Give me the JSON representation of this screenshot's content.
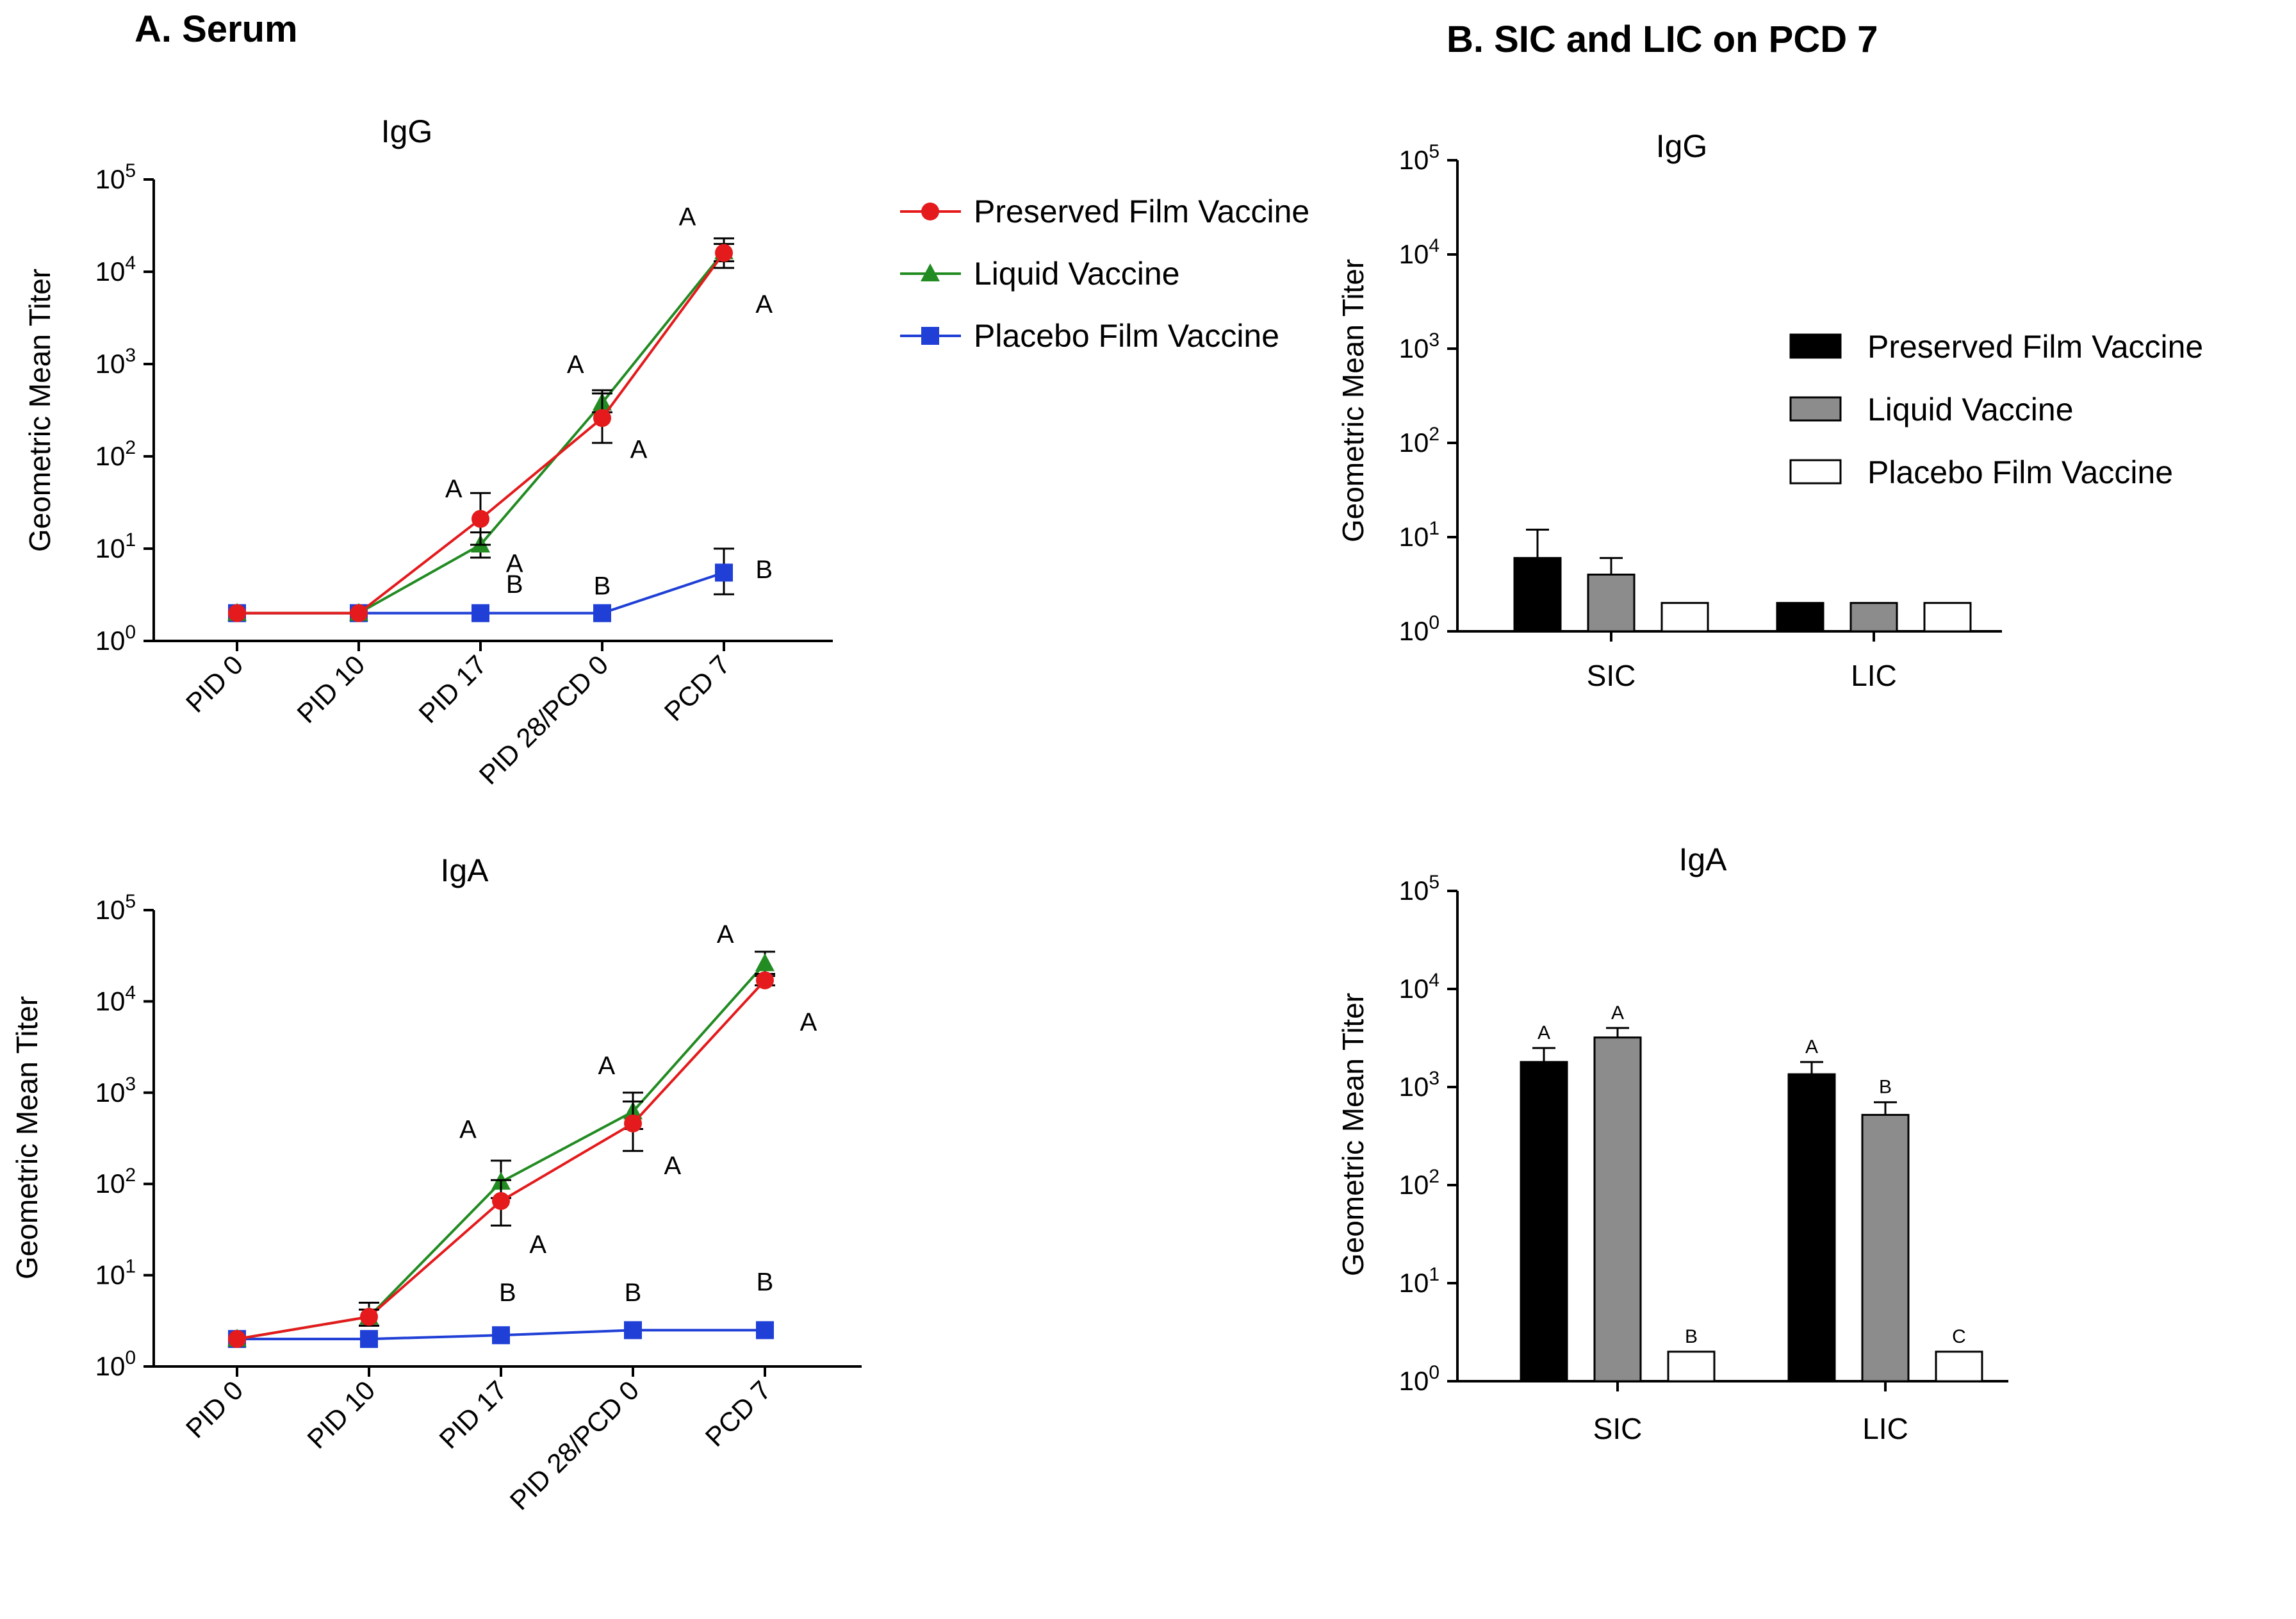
{
  "panel_a_title": "A. Serum",
  "panel_b_title": "B. SIC and LIC on PCD 7",
  "series_colors": {
    "Preserved Film Vaccine": "#e41a1c",
    "Liquid Vaccine": "#228b22",
    "Placebo Film Vaccine": "#1f3fd6"
  },
  "bar_colors": {
    "Preserved Film Vaccine": "#000000",
    "Liquid Vaccine": "#8c8c8c",
    "Placebo Film Vaccine": "#ffffff"
  },
  "line_legend": [
    "Preserved Film Vaccine",
    "Liquid Vaccine",
    "Placebo Film Vaccine"
  ],
  "bar_legend": [
    "Preserved Film Vaccine",
    "Liquid Vaccine",
    "Placebo Film Vaccine"
  ],
  "tick_labels": [
    "10",
    "10",
    "10",
    "10",
    "10",
    "10"
  ],
  "tick_exponents": [
    "0",
    "1",
    "2",
    "3",
    "4",
    "5"
  ],
  "chart_data": [
    {
      "id": "serum_igg",
      "type": "line",
      "title": "IgG",
      "ylabel": "Geometric Mean Titer",
      "yscale": "log",
      "ylim": [
        1,
        100000
      ],
      "categories": [
        "PID 0",
        "PID 10",
        "PID 17",
        "PID 28/PCD 0",
        "PCD 7"
      ],
      "series": [
        {
          "name": "Preserved Film Vaccine",
          "values": [
            2,
            2,
            21,
            260,
            16000
          ],
          "err_low": [
            2,
            2,
            11,
            140,
            11000
          ],
          "err_high": [
            2,
            2,
            40,
            480,
            23000
          ]
        },
        {
          "name": "Liquid Vaccine",
          "values": [
            2,
            2,
            11,
            380,
            16500
          ],
          "err_low": [
            2,
            2,
            8,
            300,
            13000
          ],
          "err_high": [
            2,
            2,
            15,
            520,
            20000
          ]
        },
        {
          "name": "Placebo Film Vaccine",
          "values": [
            2,
            2,
            2,
            2,
            5.5
          ],
          "err_low": [
            2,
            2,
            2,
            2,
            3.2
          ],
          "err_high": [
            2,
            2,
            2,
            2,
            10
          ]
        }
      ],
      "annotations": [
        {
          "text": "A",
          "x": 2,
          "y": 45,
          "dx": -0.22
        },
        {
          "text": "A",
          "x": 2,
          "y": 7,
          "dx": 0.28
        },
        {
          "text": "B",
          "x": 2,
          "y": 2.3,
          "dx": 0.28,
          "dy": 1.8
        },
        {
          "text": "A",
          "x": 3,
          "y": 1000,
          "dx": -0.22
        },
        {
          "text": "A",
          "x": 3,
          "y": 120,
          "dx": 0.3
        },
        {
          "text": "B",
          "x": 3,
          "y": 4,
          "dx": 0
        },
        {
          "text": "A",
          "x": 4,
          "y": 40000,
          "dx": -0.3
        },
        {
          "text": "A",
          "x": 4,
          "y": 4500,
          "dx": 0.33
        },
        {
          "text": "B",
          "x": 4,
          "y": 6,
          "dx": 0.33
        }
      ]
    },
    {
      "id": "serum_iga",
      "type": "line",
      "title": "IgA",
      "ylabel": "Geometric Mean Titer",
      "yscale": "log",
      "ylim": [
        1,
        100000
      ],
      "categories": [
        "PID 0",
        "PID 10",
        "PID 17",
        "PID 28/PCD 0",
        "PCD 7"
      ],
      "series": [
        {
          "name": "Preserved Film Vaccine",
          "values": [
            2,
            3.5,
            65,
            460,
            17000
          ],
          "err_low": [
            2,
            2.8,
            35,
            230,
            15000
          ],
          "err_high": [
            2,
            4.2,
            110,
            800,
            19000
          ]
        },
        {
          "name": "Liquid Vaccine",
          "values": [
            2,
            3.5,
            105,
            620,
            26000
          ],
          "err_low": [
            2,
            2.8,
            70,
            400,
            20000
          ],
          "err_high": [
            2,
            5,
            180,
            1000,
            35000
          ]
        },
        {
          "name": "Placebo Film Vaccine",
          "values": [
            2,
            2,
            2.2,
            2.5,
            2.5
          ],
          "err_low": [
            2,
            2,
            2.2,
            2.5,
            2.5
          ],
          "err_high": [
            2,
            2,
            2.2,
            2.5,
            2.5
          ]
        }
      ],
      "annotations": [
        {
          "text": "A",
          "x": 2,
          "y": 400,
          "dx": -0.25
        },
        {
          "text": "A",
          "x": 2,
          "y": 22,
          "dx": 0.28
        },
        {
          "text": "B",
          "x": 2,
          "y": 6.5,
          "dx": 0.05
        },
        {
          "text": "A",
          "x": 3,
          "y": 2000,
          "dx": -0.2
        },
        {
          "text": "A",
          "x": 3,
          "y": 160,
          "dx": 0.3
        },
        {
          "text": "B",
          "x": 3,
          "y": 6.5,
          "dx": 0
        },
        {
          "text": "A",
          "x": 4,
          "y": 55000,
          "dx": -0.3
        },
        {
          "text": "A",
          "x": 4,
          "y": 6000,
          "dx": 0.33
        },
        {
          "text": "B",
          "x": 4,
          "y": 8.5,
          "dx": 0
        }
      ]
    },
    {
      "id": "pcd7_igg",
      "type": "bar",
      "title": "IgG",
      "ylabel": "Geometric Mean Titer",
      "yscale": "log",
      "ylim": [
        1,
        100000
      ],
      "categories": [
        "SIC",
        "LIC"
      ],
      "series": [
        {
          "name": "Preserved Film Vaccine",
          "values": [
            6,
            2
          ],
          "err_high": [
            12,
            2
          ]
        },
        {
          "name": "Liquid Vaccine",
          "values": [
            4,
            2
          ],
          "err_high": [
            6,
            2
          ]
        },
        {
          "name": "Placebo Film Vaccine",
          "values": [
            2,
            2
          ],
          "err_high": [
            2,
            2
          ]
        }
      ],
      "labels": []
    },
    {
      "id": "pcd7_iga",
      "type": "bar",
      "title": "IgA",
      "ylabel": "Geometric Mean Titer",
      "yscale": "log",
      "ylim": [
        1,
        100000
      ],
      "categories": [
        "SIC",
        "LIC"
      ],
      "series": [
        {
          "name": "Preserved Film Vaccine",
          "values": [
            1800,
            1350
          ],
          "err_high": [
            2500,
            1800
          ]
        },
        {
          "name": "Liquid Vaccine",
          "values": [
            3200,
            520
          ],
          "err_high": [
            4000,
            700
          ]
        },
        {
          "name": "Placebo Film Vaccine",
          "values": [
            2,
            2
          ],
          "err_high": [
            2,
            2
          ]
        }
      ],
      "labels": [
        {
          "text": "A",
          "group": 0,
          "bar": 0,
          "y": 2500
        },
        {
          "text": "A",
          "group": 0,
          "bar": 1,
          "y": 4000
        },
        {
          "text": "B",
          "group": 0,
          "bar": 2,
          "y": 2
        },
        {
          "text": "A",
          "group": 1,
          "bar": 0,
          "y": 1800
        },
        {
          "text": "B",
          "group": 1,
          "bar": 1,
          "y": 700
        },
        {
          "text": "C",
          "group": 1,
          "bar": 2,
          "y": 2
        }
      ]
    }
  ]
}
